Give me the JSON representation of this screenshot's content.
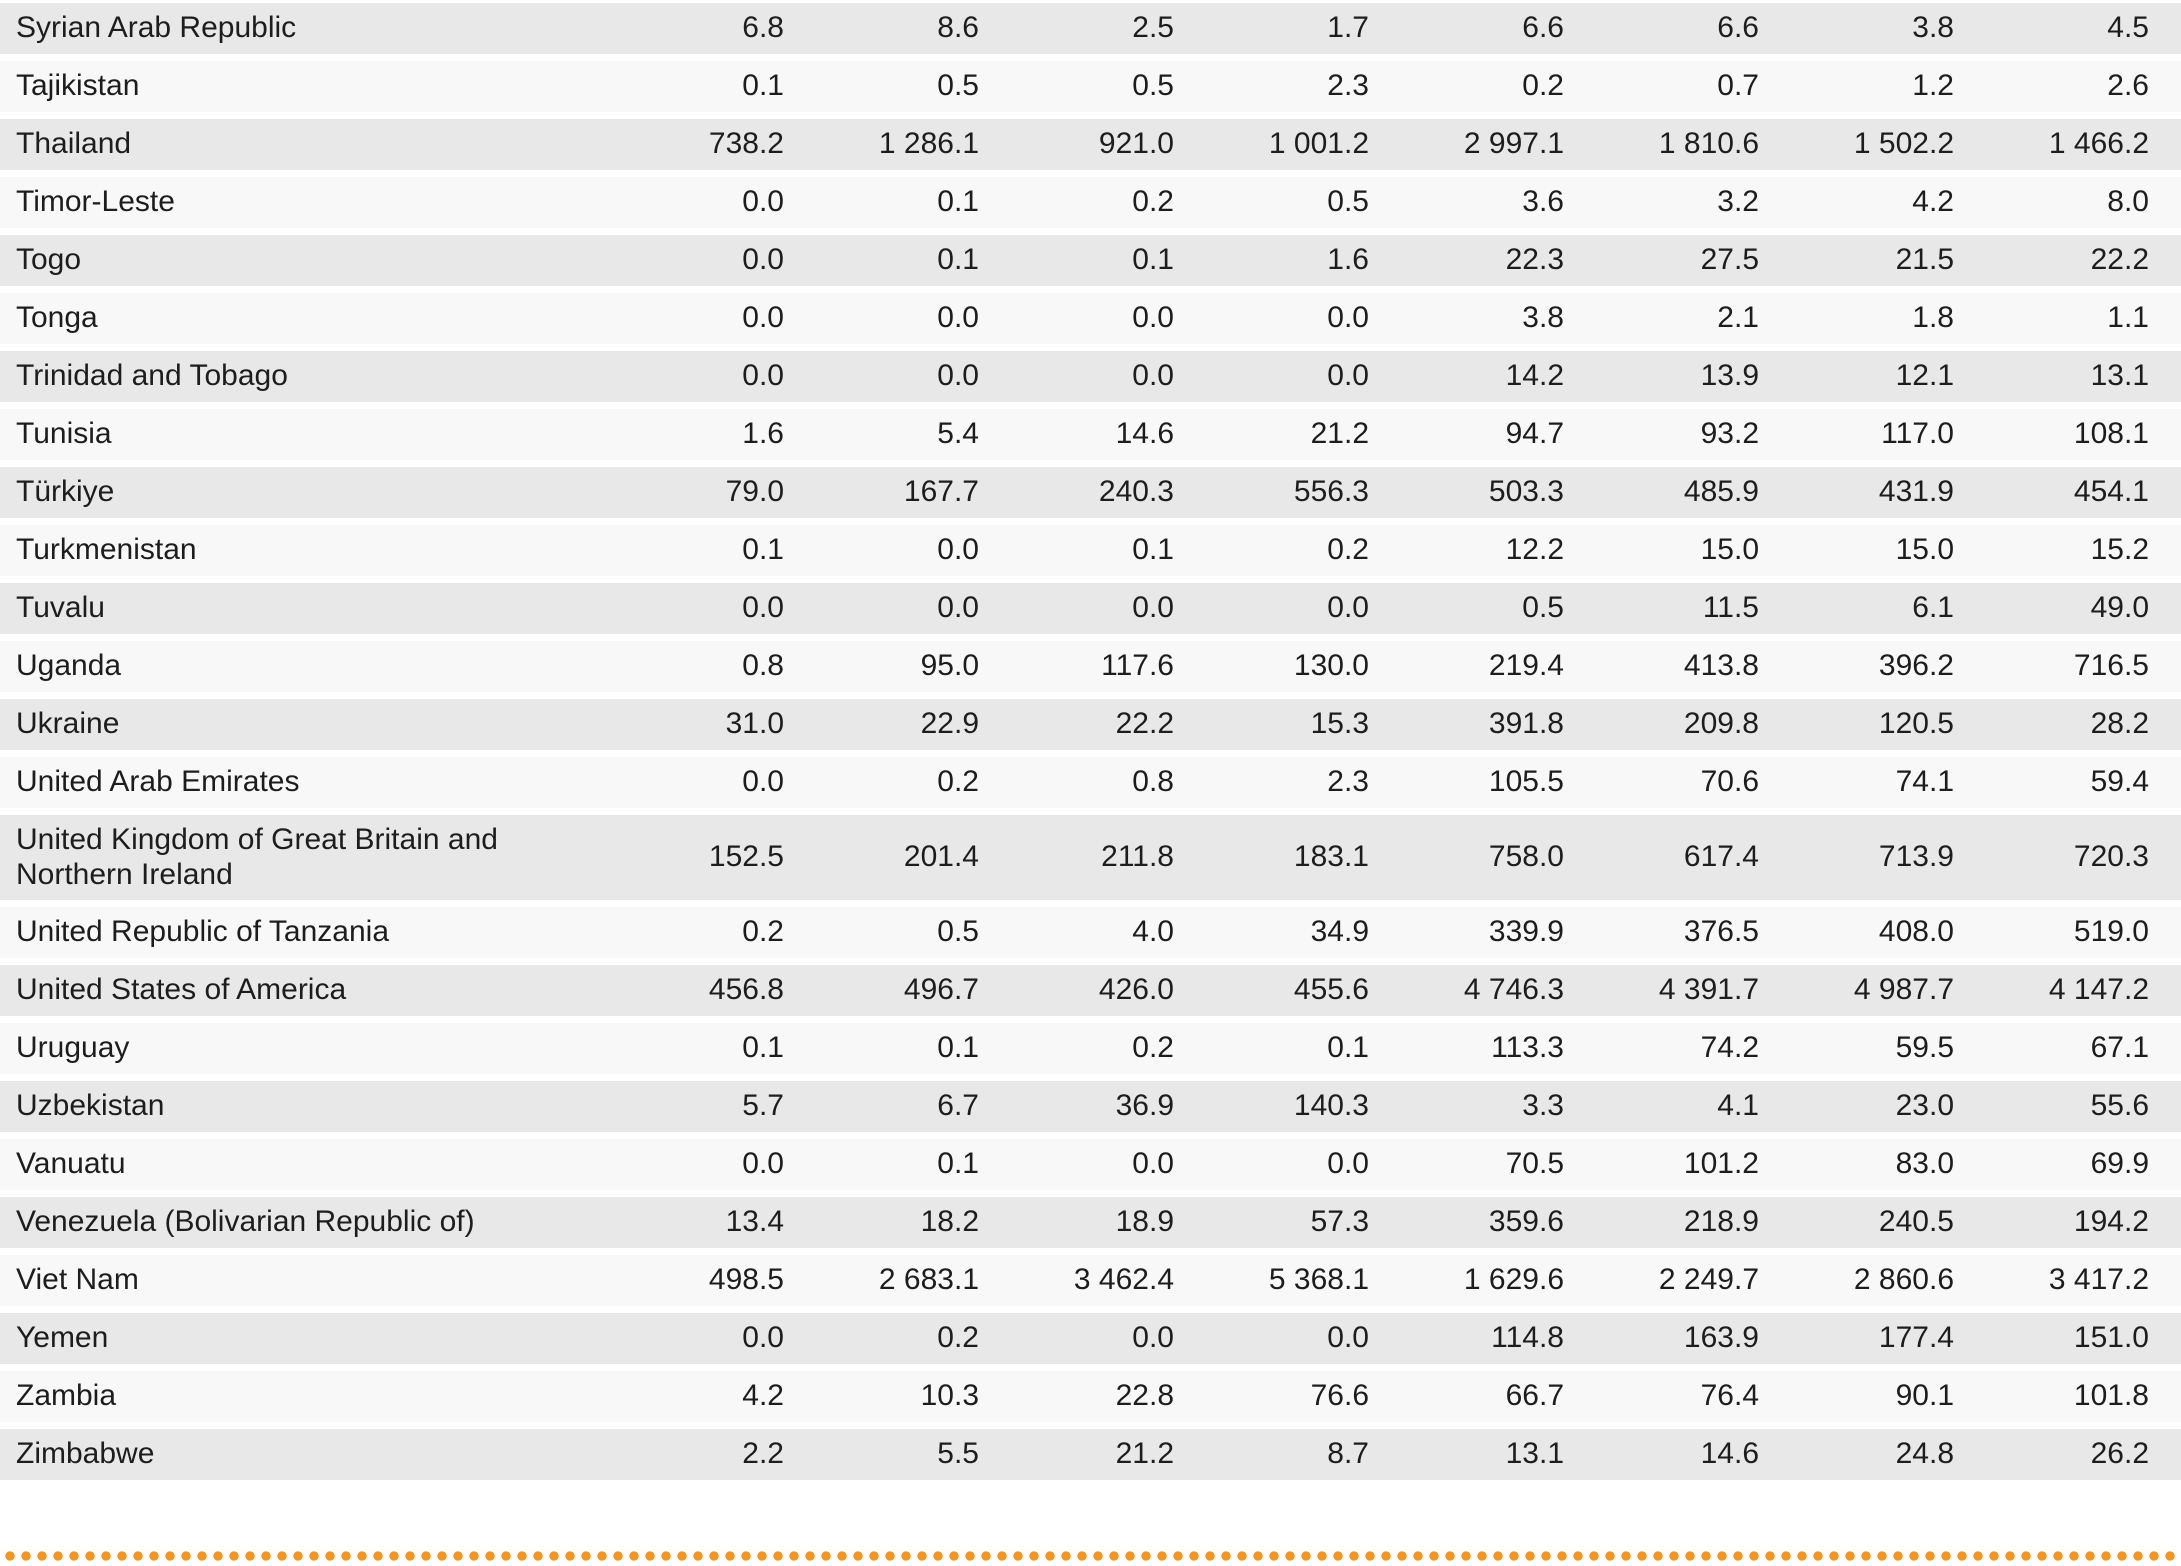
{
  "table": {
    "rows": [
      {
        "country": "Syrian Arab Republic",
        "values": [
          "6.8",
          "8.6",
          "2.5",
          "1.7",
          "6.6",
          "6.6",
          "3.8",
          "4.5"
        ]
      },
      {
        "country": "Tajikistan",
        "values": [
          "0.1",
          "0.5",
          "0.5",
          "2.3",
          "0.2",
          "0.7",
          "1.2",
          "2.6"
        ]
      },
      {
        "country": "Thailand",
        "values": [
          "738.2",
          "1 286.1",
          "921.0",
          "1 001.2",
          "2 997.1",
          "1 810.6",
          "1 502.2",
          "1 466.2"
        ]
      },
      {
        "country": "Timor-Leste",
        "values": [
          "0.0",
          "0.1",
          "0.2",
          "0.5",
          "3.6",
          "3.2",
          "4.2",
          "8.0"
        ]
      },
      {
        "country": "Togo",
        "values": [
          "0.0",
          "0.1",
          "0.1",
          "1.6",
          "22.3",
          "27.5",
          "21.5",
          "22.2"
        ]
      },
      {
        "country": "Tonga",
        "values": [
          "0.0",
          "0.0",
          "0.0",
          "0.0",
          "3.8",
          "2.1",
          "1.8",
          "1.1"
        ]
      },
      {
        "country": "Trinidad and Tobago",
        "values": [
          "0.0",
          "0.0",
          "0.0",
          "0.0",
          "14.2",
          "13.9",
          "12.1",
          "13.1"
        ]
      },
      {
        "country": "Tunisia",
        "values": [
          "1.6",
          "5.4",
          "14.6",
          "21.2",
          "94.7",
          "93.2",
          "117.0",
          "108.1"
        ]
      },
      {
        "country": "Türkiye",
        "values": [
          "79.0",
          "167.7",
          "240.3",
          "556.3",
          "503.3",
          "485.9",
          "431.9",
          "454.1"
        ]
      },
      {
        "country": "Turkmenistan",
        "values": [
          "0.1",
          "0.0",
          "0.1",
          "0.2",
          "12.2",
          "15.0",
          "15.0",
          "15.2"
        ]
      },
      {
        "country": "Tuvalu",
        "values": [
          "0.0",
          "0.0",
          "0.0",
          "0.0",
          "0.5",
          "11.5",
          "6.1",
          "49.0"
        ]
      },
      {
        "country": "Uganda",
        "values": [
          "0.8",
          "95.0",
          "117.6",
          "130.0",
          "219.4",
          "413.8",
          "396.2",
          "716.5"
        ]
      },
      {
        "country": "Ukraine",
        "values": [
          "31.0",
          "22.9",
          "22.2",
          "15.3",
          "391.8",
          "209.8",
          "120.5",
          "28.2"
        ]
      },
      {
        "country": "United Arab Emirates",
        "values": [
          "0.0",
          "0.2",
          "0.8",
          "2.3",
          "105.5",
          "70.6",
          "74.1",
          "59.4"
        ]
      },
      {
        "country": "United Kingdom of Great Britain and Northern Ireland",
        "values": [
          "152.5",
          "201.4",
          "211.8",
          "183.1",
          "758.0",
          "617.4",
          "713.9",
          "720.3"
        ]
      },
      {
        "country": "United Republic of Tanzania",
        "values": [
          "0.2",
          "0.5",
          "4.0",
          "34.9",
          "339.9",
          "376.5",
          "408.0",
          "519.0"
        ]
      },
      {
        "country": "United States of America",
        "values": [
          "456.8",
          "496.7",
          "426.0",
          "455.6",
          "4 746.3",
          "4 391.7",
          "4 987.7",
          "4 147.2"
        ]
      },
      {
        "country": "Uruguay",
        "values": [
          "0.1",
          "0.1",
          "0.2",
          "0.1",
          "113.3",
          "74.2",
          "59.5",
          "67.1"
        ]
      },
      {
        "country": "Uzbekistan",
        "values": [
          "5.7",
          "6.7",
          "36.9",
          "140.3",
          "3.3",
          "4.1",
          "23.0",
          "55.6"
        ]
      },
      {
        "country": "Vanuatu",
        "values": [
          "0.0",
          "0.1",
          "0.0",
          "0.0",
          "70.5",
          "101.2",
          "83.0",
          "69.9"
        ]
      },
      {
        "country": "Venezuela (Bolivarian Republic of)",
        "values": [
          "13.4",
          "18.2",
          "18.9",
          "57.3",
          "359.6",
          "218.9",
          "240.5",
          "194.2"
        ]
      },
      {
        "country": "Viet Nam",
        "values": [
          "498.5",
          "2 683.1",
          "3 462.4",
          "5 368.1",
          "1 629.6",
          "2 249.7",
          "2 860.6",
          "3 417.2"
        ]
      },
      {
        "country": "Yemen",
        "values": [
          "0.0",
          "0.2",
          "0.0",
          "0.0",
          "114.8",
          "163.9",
          "177.4",
          "151.0"
        ]
      },
      {
        "country": "Zambia",
        "values": [
          "4.2",
          "10.3",
          "22.8",
          "76.6",
          "66.7",
          "76.4",
          "90.1",
          "101.8"
        ]
      },
      {
        "country": "Zimbabwe",
        "values": [
          "2.2",
          "5.5",
          "21.2",
          "8.7",
          "13.1",
          "14.6",
          "24.8",
          "26.2"
        ]
      }
    ]
  },
  "colors": {
    "row_shaded": "#E8E8E8",
    "row_plain": "#F8F8F8",
    "text": "#1D1D1D",
    "divider_dots": "#F79420",
    "background": "#FFFFFF"
  }
}
